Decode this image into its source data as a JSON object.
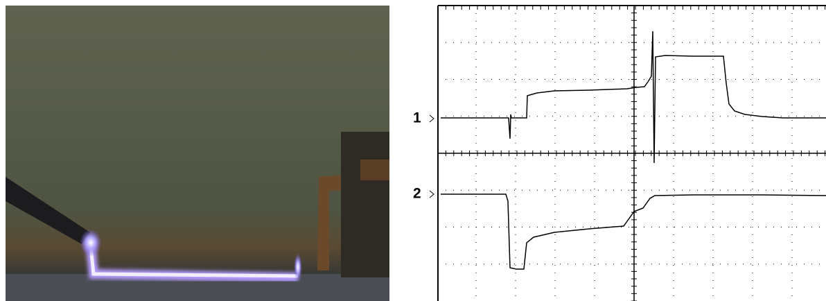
{
  "scope": {
    "channel_labels": [
      "1",
      "2"
    ]
  }
}
